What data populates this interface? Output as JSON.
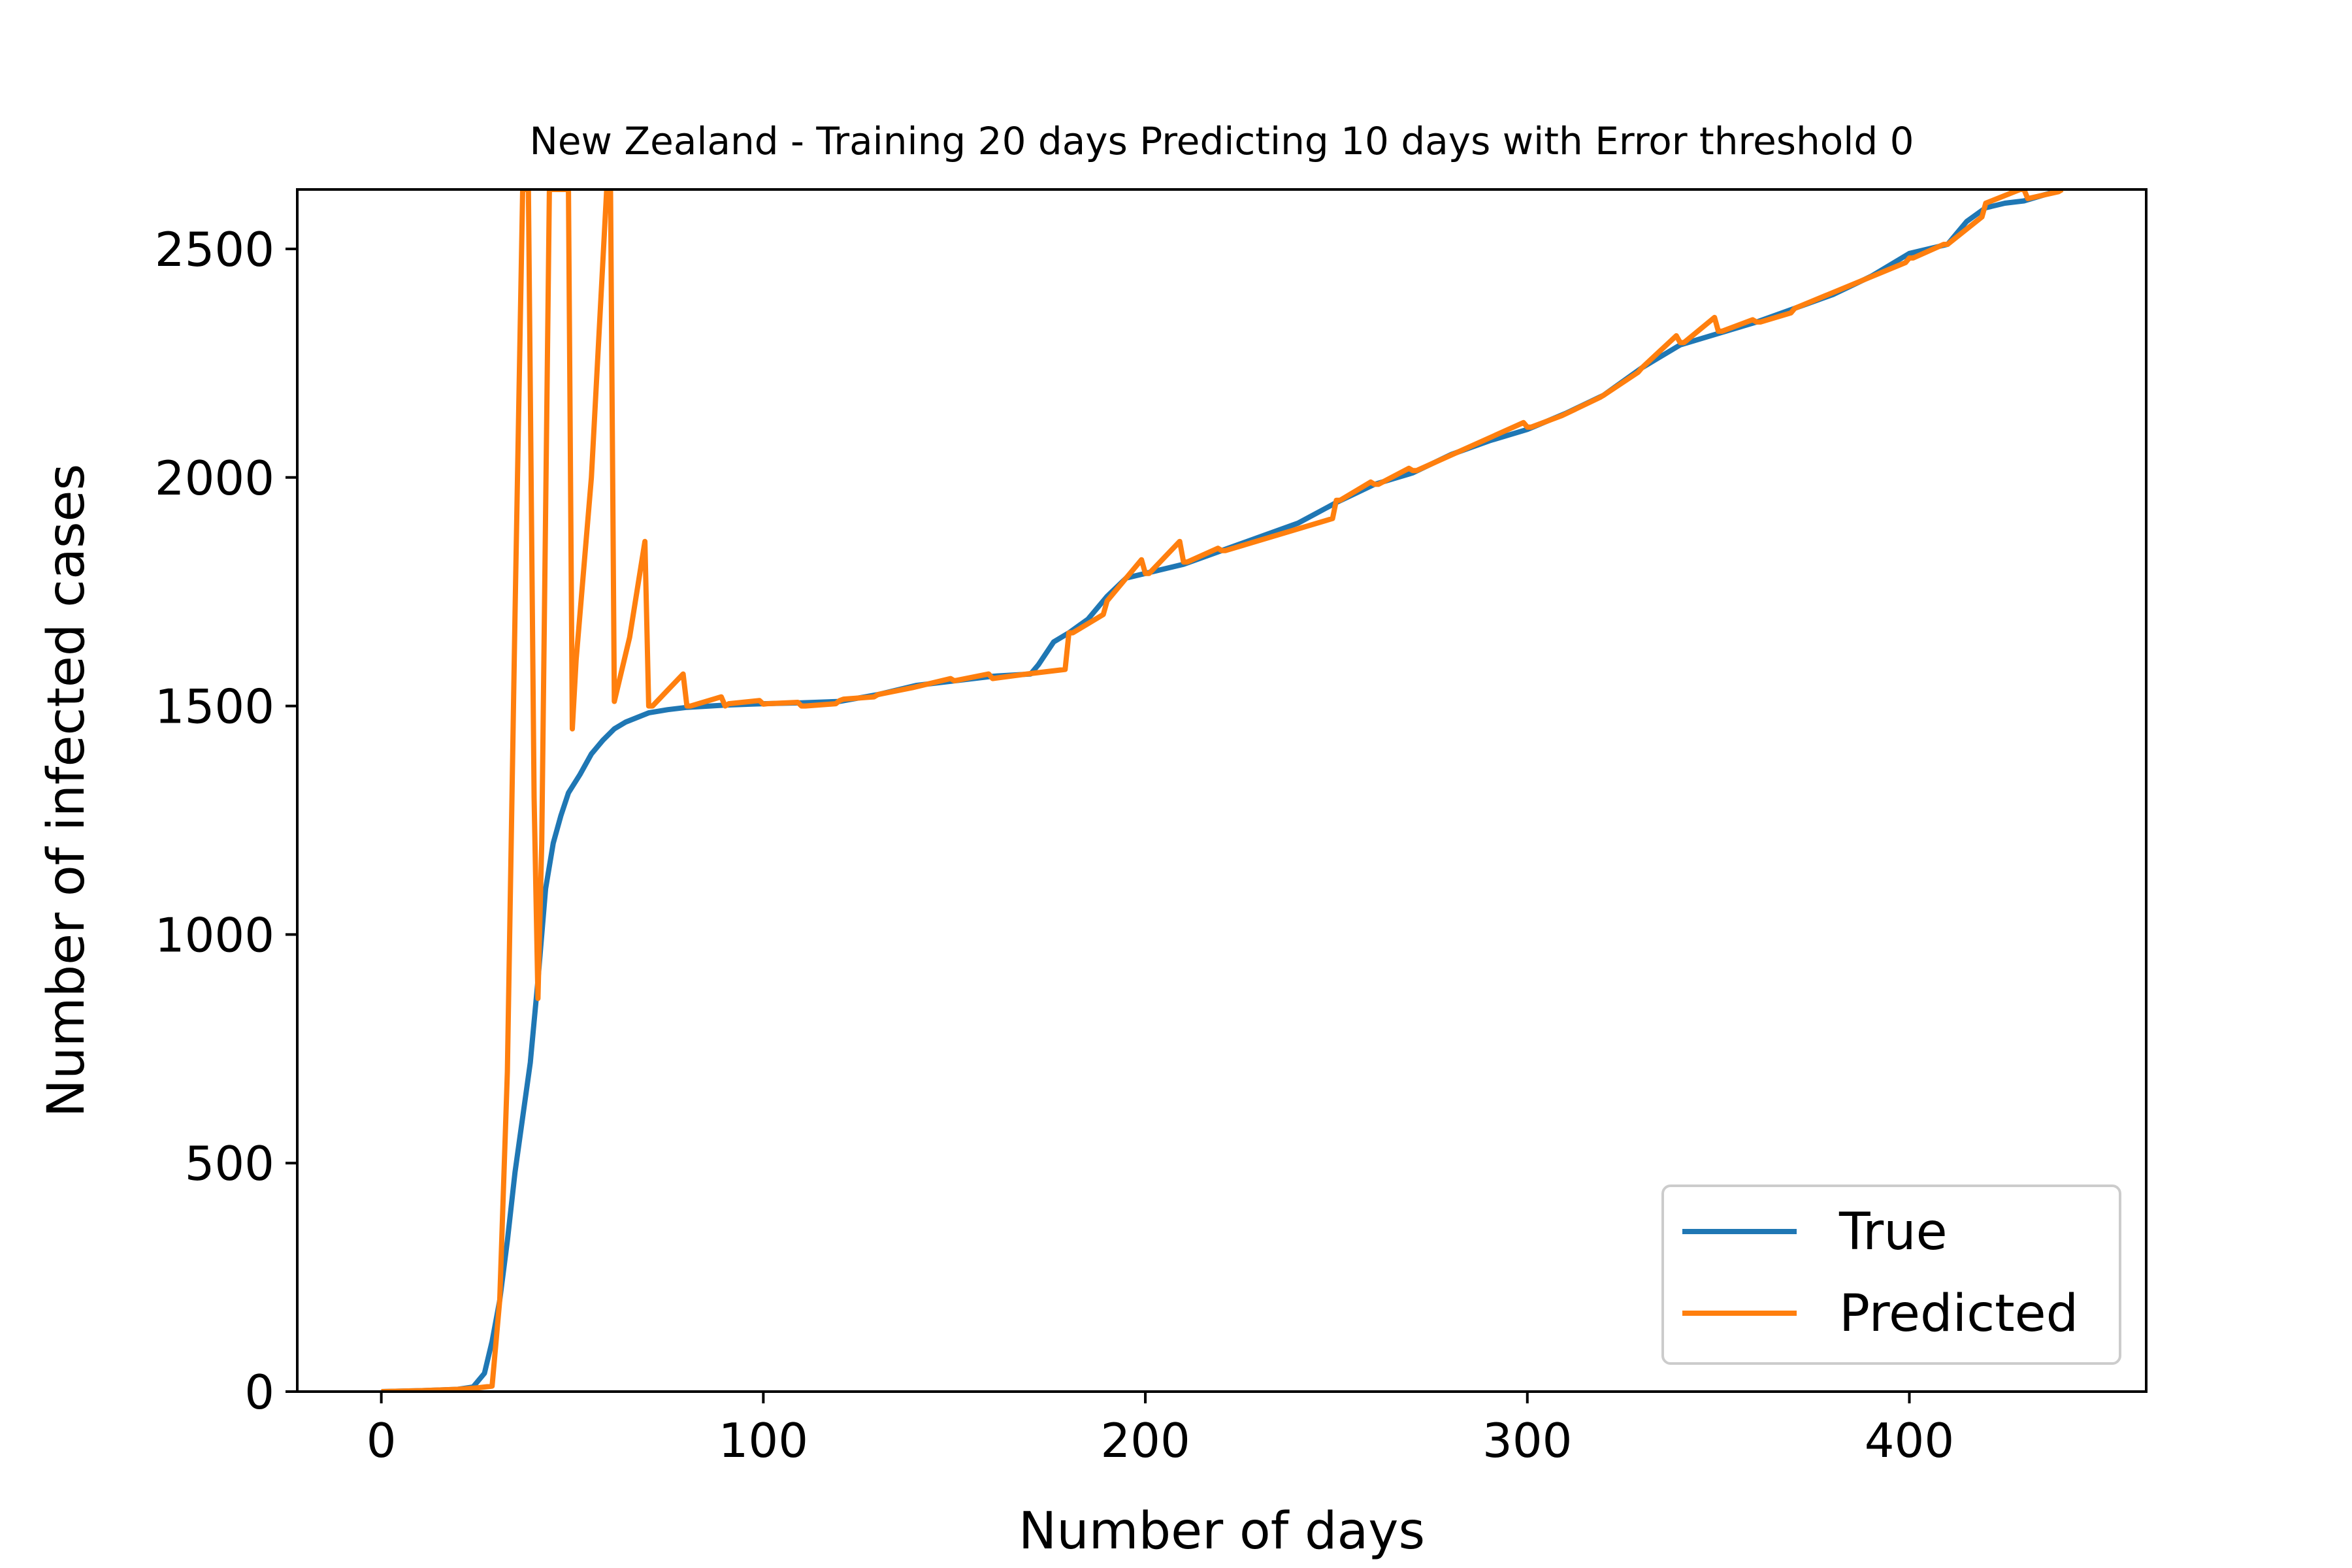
{
  "chart_data": {
    "type": "line",
    "title": "New Zealand - Training 20 days Predicting 10 days with Error threshold 0",
    "xlabel": "Number of days",
    "ylabel": "Number of infected cases",
    "xlim": [
      -22,
      462
    ],
    "ylim": [
      0,
      2630
    ],
    "xticks": [
      0,
      100,
      200,
      300,
      400
    ],
    "yticks": [
      0,
      500,
      1000,
      1500,
      2000,
      2500
    ],
    "grid": false,
    "legend_position": "bottom-right",
    "series": [
      {
        "name": "True",
        "color": "#1f77b4",
        "x": [
          0,
          10,
          20,
          24,
          27,
          29,
          31,
          33,
          35,
          37,
          39,
          41,
          43,
          45,
          47,
          49,
          52,
          55,
          58,
          61,
          64,
          67,
          70,
          75,
          80,
          90,
          100,
          110,
          120,
          130,
          140,
          150,
          160,
          170,
          172,
          176,
          180,
          185,
          190,
          195,
          200,
          210,
          220,
          230,
          240,
          250,
          260,
          270,
          280,
          290,
          300,
          310,
          320,
          330,
          340,
          350,
          360,
          370,
          380,
          390,
          400,
          410,
          415,
          420,
          425,
          430,
          440
        ],
        "y": [
          0,
          2,
          5,
          10,
          40,
          110,
          200,
          330,
          480,
          600,
          720,
          900,
          1100,
          1200,
          1260,
          1310,
          1350,
          1395,
          1425,
          1450,
          1465,
          1475,
          1485,
          1492,
          1497,
          1502,
          1505,
          1507,
          1510,
          1525,
          1545,
          1555,
          1565,
          1570,
          1590,
          1640,
          1660,
          1690,
          1740,
          1780,
          1790,
          1810,
          1840,
          1870,
          1900,
          1945,
          1985,
          2010,
          2050,
          2080,
          2105,
          2140,
          2180,
          2240,
          2290,
          2315,
          2340,
          2370,
          2400,
          2440,
          2490,
          2510,
          2560,
          2590,
          2600,
          2605,
          2630
        ]
      },
      {
        "name": "Predicted",
        "color": "#ff7f0e",
        "x": [
          0,
          10,
          20,
          25,
          29,
          31,
          33,
          35,
          37,
          38.5,
          40,
          41,
          42,
          44,
          46,
          47.5,
          49,
          50,
          51,
          55,
          59,
          60,
          61,
          65,
          69,
          70,
          71,
          79,
          80,
          81,
          89,
          90,
          91,
          99,
          100,
          101,
          109,
          110,
          111,
          119,
          120,
          121,
          129,
          130,
          139,
          149,
          150,
          159,
          160,
          169,
          179,
          180,
          181,
          189,
          190,
          199,
          200,
          201,
          209,
          210,
          211,
          219,
          220,
          221,
          249,
          250,
          251,
          259,
          260,
          261,
          269,
          270,
          271,
          299,
          300,
          301,
          309,
          319,
          320,
          329,
          330,
          339,
          340,
          341,
          349,
          350,
          351,
          359,
          360,
          361,
          369,
          370,
          399,
          400,
          401,
          409,
          410,
          419,
          420,
          429,
          430,
          431,
          439,
          440
        ],
        "y": [
          0,
          2,
          5,
          8,
          12,
          200,
          700,
          1700,
          2630,
          2630,
          1300,
          860,
          1200,
          2630,
          2630,
          2630,
          2630,
          1450,
          1600,
          2000,
          2630,
          2630,
          1510,
          1650,
          1860,
          1500,
          1500,
          1570,
          1500,
          1500,
          1520,
          1500,
          1505,
          1512,
          1504,
          1505,
          1508,
          1500,
          1500,
          1505,
          1512,
          1515,
          1520,
          1525,
          1540,
          1560,
          1555,
          1570,
          1560,
          1570,
          1580,
          1660,
          1660,
          1700,
          1730,
          1820,
          1790,
          1790,
          1860,
          1815,
          1815,
          1845,
          1840,
          1840,
          1910,
          1950,
          1950,
          1990,
          1985,
          1985,
          2020,
          2015,
          2015,
          2120,
          2110,
          2110,
          2135,
          2175,
          2180,
          2230,
          2240,
          2310,
          2295,
          2295,
          2350,
          2320,
          2320,
          2345,
          2340,
          2340,
          2360,
          2370,
          2470,
          2480,
          2480,
          2510,
          2510,
          2570,
          2600,
          2630,
          2630,
          2610,
          2625,
          2630
        ]
      }
    ]
  }
}
